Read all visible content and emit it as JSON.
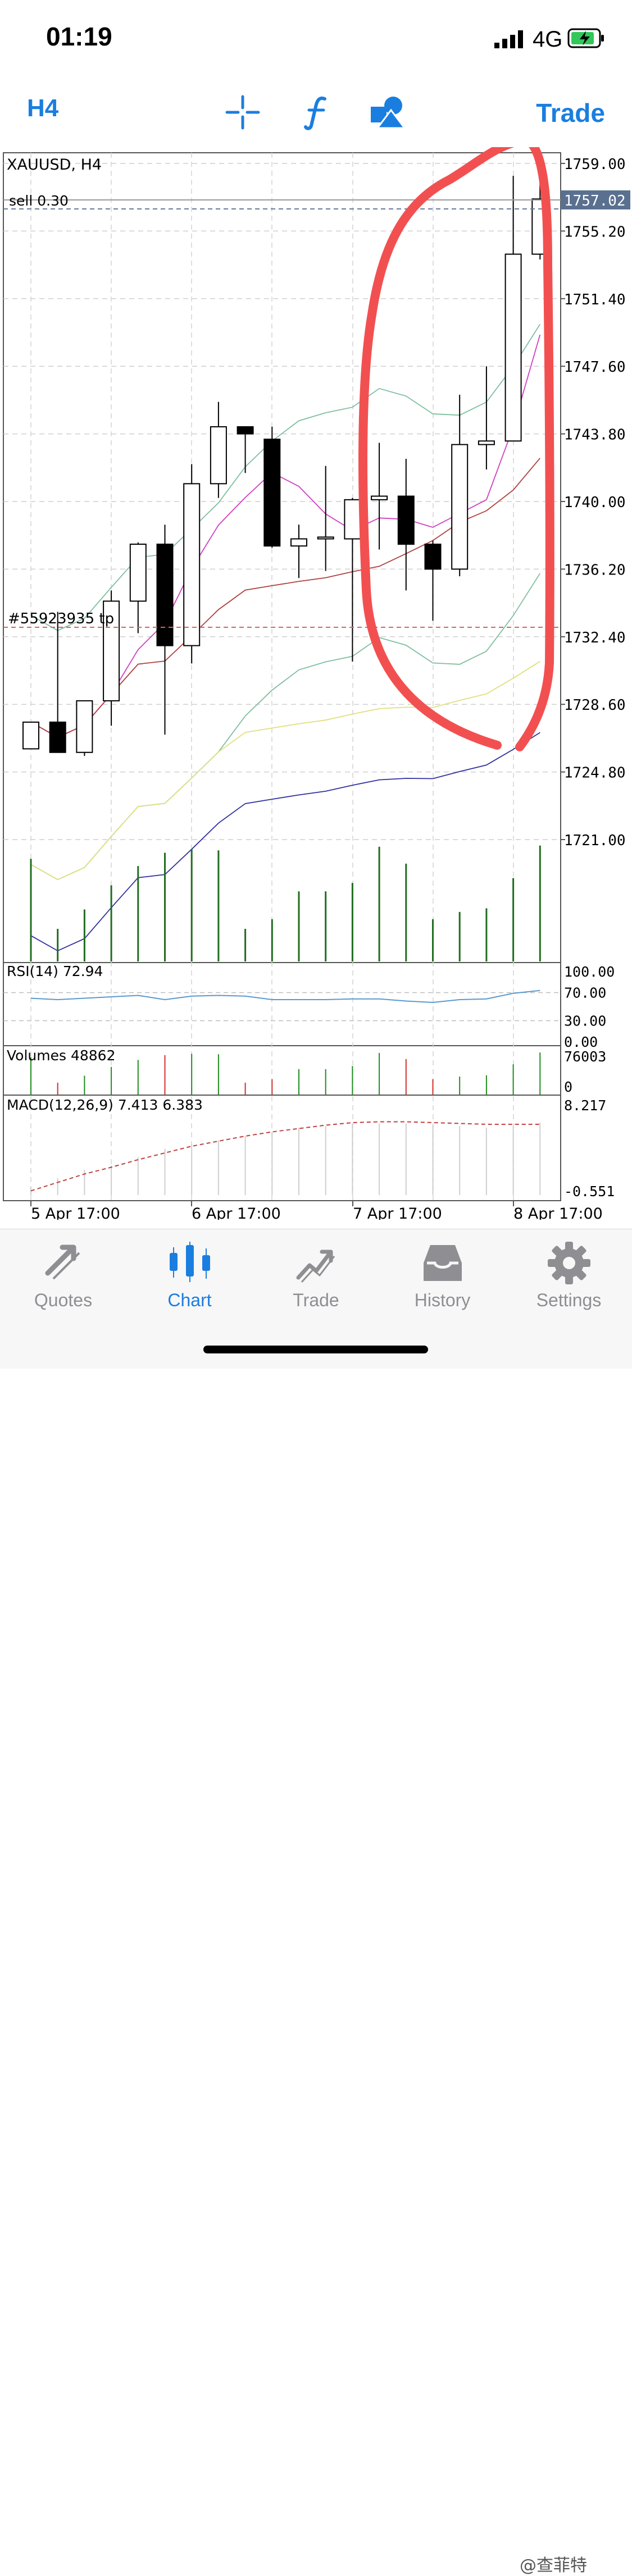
{
  "status_bar": {
    "time": "01:19",
    "network": "4G"
  },
  "toolbar": {
    "timeframe": "H4",
    "trade_label": "Trade"
  },
  "chart_data": {
    "type": "candlestick",
    "title": "XAUUSD, H4",
    "order_line_label": "sell 0.30",
    "tp_line_label": "#55923935 tp",
    "current_price": "1757.02",
    "y_ticks": [
      "1759.00",
      "1755.20",
      "1751.40",
      "1747.60",
      "1743.80",
      "1740.00",
      "1736.20",
      "1732.40",
      "1728.60",
      "1724.80",
      "1721.00"
    ],
    "x_ticks": [
      "5 Apr 17:00",
      "6 Apr 17:00",
      "7 Apr 17:00",
      "8 Apr 17:00"
    ],
    "ylim": [
      1721.0,
      1759.0
    ],
    "candles": [
      {
        "o": 1726.1,
        "h": 1727.6,
        "l": 1726.1,
        "c": 1727.6
      },
      {
        "o": 1727.6,
        "h": 1733.8,
        "l": 1725.9,
        "c": 1725.9
      },
      {
        "o": 1725.9,
        "h": 1728.8,
        "l": 1725.7,
        "c": 1728.8
      },
      {
        "o": 1728.8,
        "h": 1735.0,
        "l": 1727.4,
        "c": 1734.4
      },
      {
        "o": 1734.4,
        "h": 1737.7,
        "l": 1732.6,
        "c": 1737.6
      },
      {
        "o": 1737.6,
        "h": 1738.7,
        "l": 1726.9,
        "c": 1731.9
      },
      {
        "o": 1731.9,
        "h": 1742.1,
        "l": 1730.9,
        "c": 1741.0
      },
      {
        "o": 1741.0,
        "h": 1745.6,
        "l": 1740.2,
        "c": 1744.2
      },
      {
        "o": 1744.2,
        "h": 1744.2,
        "l": 1741.6,
        "c": 1743.8
      },
      {
        "o": 1743.5,
        "h": 1744.2,
        "l": 1737.4,
        "c": 1737.5
      },
      {
        "o": 1737.5,
        "h": 1738.7,
        "l": 1735.7,
        "c": 1737.9
      },
      {
        "o": 1737.9,
        "h": 1742.0,
        "l": 1736.1,
        "c": 1738.0
      },
      {
        "o": 1737.9,
        "h": 1740.2,
        "l": 1731.0,
        "c": 1740.1
      },
      {
        "o": 1740.1,
        "h": 1743.3,
        "l": 1737.3,
        "c": 1740.3
      },
      {
        "o": 1740.3,
        "h": 1742.4,
        "l": 1735.0,
        "c": 1737.6
      },
      {
        "o": 1737.6,
        "h": 1737.8,
        "l": 1733.3,
        "c": 1736.2
      },
      {
        "o": 1736.2,
        "h": 1746.0,
        "l": 1735.8,
        "c": 1743.2
      },
      {
        "o": 1743.2,
        "h": 1747.6,
        "l": 1741.8,
        "c": 1743.4
      },
      {
        "o": 1743.4,
        "h": 1758.3,
        "l": 1743.4,
        "c": 1753.9
      },
      {
        "o": 1753.9,
        "h": 1759.0,
        "l": 1753.6,
        "c": 1757.0
      }
    ],
    "volume_bars": [
      0.85,
      0.27,
      0.43,
      0.63,
      0.79,
      0.9,
      0.93,
      0.92,
      0.27,
      0.35,
      0.58,
      0.58,
      0.65,
      0.95,
      0.81,
      0.35,
      0.41,
      0.44,
      0.69,
      0.96
    ],
    "rsi": {
      "label": "RSI(14) 72.94",
      "ticks": [
        "100.00",
        "70.00",
        "30.00",
        "0.00"
      ]
    },
    "volumes": {
      "label": "Volumes 48862",
      "ticks": [
        "76003",
        "0"
      ]
    },
    "macd": {
      "label": "MACD(12,26,9) 7.413 6.383",
      "ticks": [
        "8.217",
        "-0.551"
      ]
    }
  },
  "tabs": [
    {
      "label": "Quotes",
      "icon": "quotes-icon"
    },
    {
      "label": "Chart",
      "icon": "chart-icon",
      "active": true
    },
    {
      "label": "Trade",
      "icon": "trade-icon"
    },
    {
      "label": "History",
      "icon": "history-icon"
    },
    {
      "label": "Settings",
      "icon": "settings-icon"
    }
  ],
  "watermark": "@查菲特",
  "colors": {
    "accent": "#1a7ee0",
    "annotation": "#f25050",
    "grid": "#c8c8c8"
  }
}
